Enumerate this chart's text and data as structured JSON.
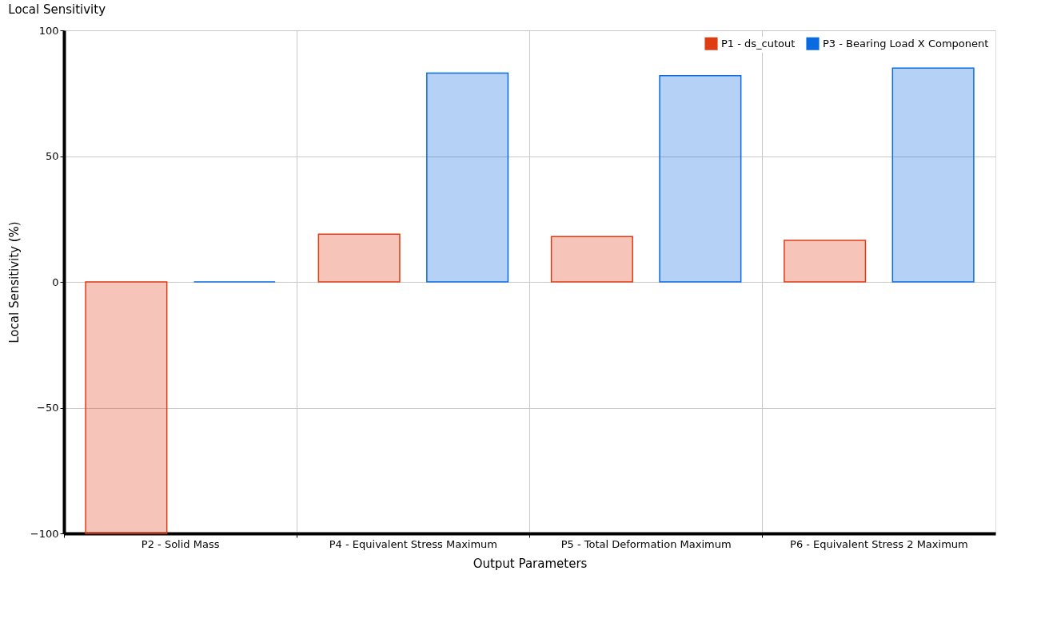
{
  "chart_data": {
    "type": "bar",
    "title": "Local Sensitivity",
    "xlabel": "Output Parameters",
    "ylabel": "Local Sensitivity (%)",
    "categories": [
      "P2 - Solid Mass",
      "P4 - Equivalent Stress Maximum",
      "P5 - Total Deformation Maximum",
      "P6 - Equivalent Stress 2 Maximum"
    ],
    "series": [
      {
        "name": "P1 - ds_cutout",
        "color": "#e03c14",
        "values": [
          -100,
          19,
          18,
          16.5
        ]
      },
      {
        "name": "P3 - Bearing Load X Component",
        "color": "#0a6ae0",
        "values": [
          0,
          83,
          82,
          85
        ]
      }
    ],
    "ylim": [
      -100,
      100
    ],
    "yticks": [
      -100,
      -50,
      0,
      50,
      100
    ],
    "grid": true,
    "legend": "top right"
  }
}
